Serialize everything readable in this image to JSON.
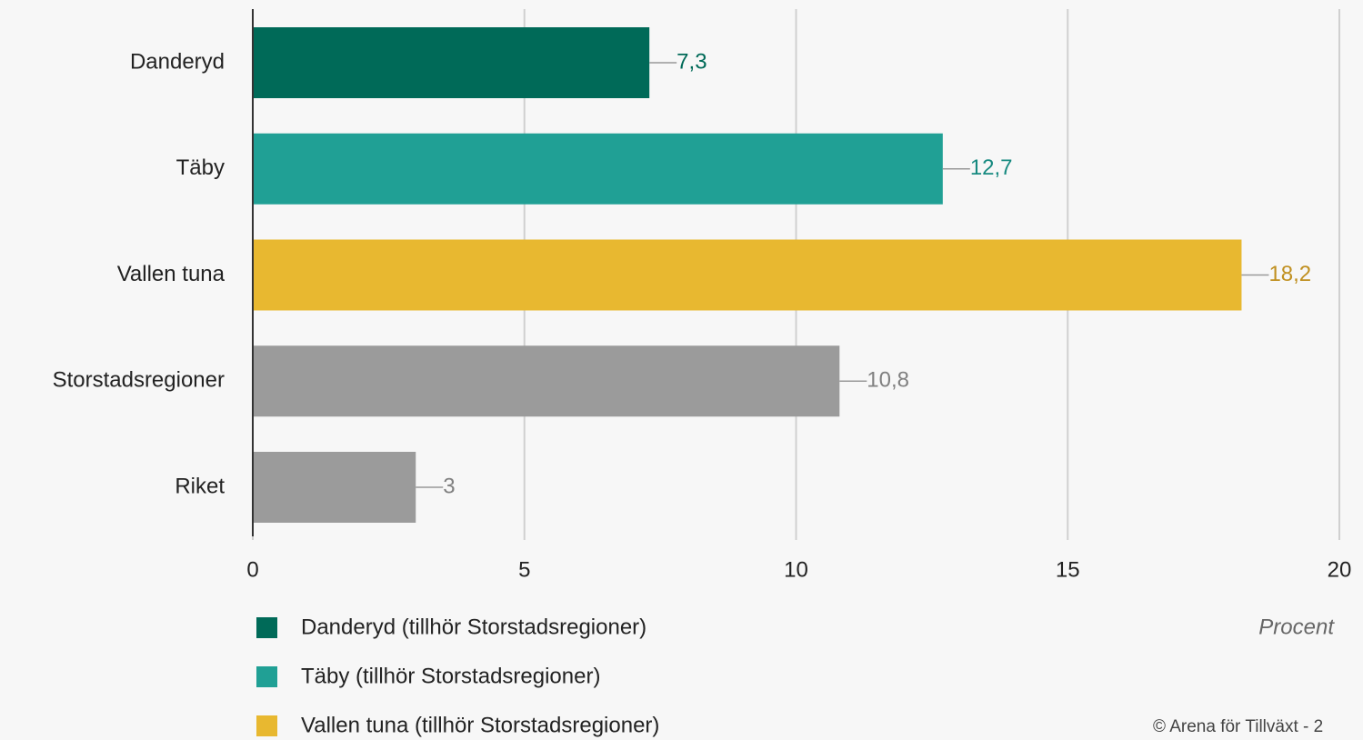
{
  "chart_data": {
    "type": "bar",
    "orientation": "horizontal",
    "categories": [
      "Danderyd",
      "Täby",
      "Vallen tuna",
      "Storstadsregioner",
      "Riket"
    ],
    "values": [
      7.3,
      12.7,
      18.2,
      10.8,
      3
    ],
    "value_labels": [
      "7,3",
      "12,7",
      "18,2",
      "10,8",
      "3"
    ],
    "colors": [
      "#006a58",
      "#20a095",
      "#e8b830",
      "#9b9b9b",
      "#9b9b9b"
    ],
    "label_colors": [
      "#006a58",
      "#178a80",
      "#c09020",
      "#808080",
      "#808080"
    ],
    "xlim": [
      0,
      20
    ],
    "xticks": [
      0,
      5,
      10,
      15,
      20
    ],
    "grid": true,
    "x_axis_label": "Procent",
    "legend": [
      {
        "name": "Danderyd (tillhör Storstadsregioner)",
        "color": "#006a58"
      },
      {
        "name": "Täby (tillhör Storstadsregioner)",
        "color": "#20a095"
      },
      {
        "name": "Vallen tuna (tillhör Storstadsregioner)",
        "color": "#e8b830"
      }
    ],
    "credit": "© Arena för Tillväxt - 2"
  }
}
